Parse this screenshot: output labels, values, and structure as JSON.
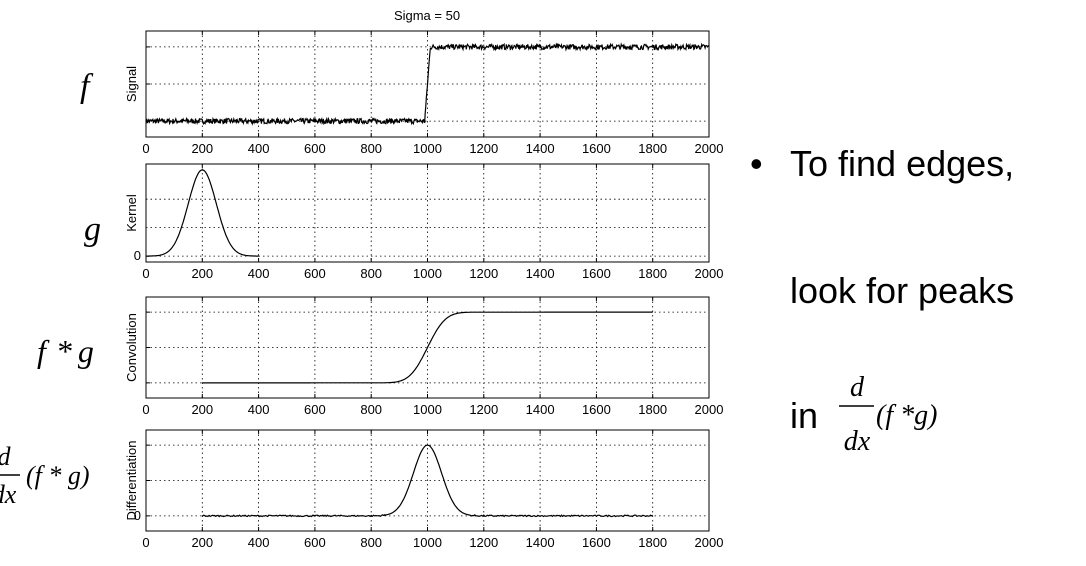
{
  "chart_data": {
    "type": "line",
    "title": "Sigma = 50",
    "xlim": [
      0,
      2000
    ],
    "x_ticks": [
      "0",
      "200",
      "400",
      "600",
      "800",
      "1000",
      "1200",
      "1400",
      "1600",
      "1800",
      "2000"
    ],
    "grid": true,
    "panels": [
      {
        "ylabel": "Signal",
        "row_label": "f",
        "y_ticks": [],
        "series": [
          {
            "x": [
              0,
              990,
              1010,
              2000
            ],
            "y": [
              0,
              0,
              1,
              1
            ],
            "noise": "high-frequency noise"
          }
        ]
      },
      {
        "ylabel": "Kernel",
        "row_label": "g",
        "y_ticks": [
          "0"
        ],
        "series": [
          {
            "shape": "gaussian",
            "center": 200,
            "sigma": 50,
            "x_range": [
              0,
              400
            ]
          }
        ]
      },
      {
        "ylabel": "Convolution",
        "row_label": "f * g",
        "y_ticks": [],
        "series": [
          {
            "shape": "smoothed step",
            "center": 1000,
            "sigma": 50,
            "x_range": [
              200,
              1800
            ]
          }
        ]
      },
      {
        "ylabel": "Differentiation",
        "row_label": "d/dx (f * g)",
        "y_ticks": [
          "0"
        ],
        "series": [
          {
            "shape": "gaussian",
            "center": 1000,
            "sigma": 50,
            "x_range": [
              200,
              1800
            ]
          }
        ]
      }
    ]
  },
  "labels": {
    "f": "f",
    "g": "g",
    "fg_f": "f",
    "fg_star": "*",
    "fg_g": "g",
    "deriv_d": "d",
    "deriv_dx": "dx",
    "deriv_expr": "(f * g)"
  },
  "bullets": {
    "dot": "•",
    "line1": "To find edges,",
    "line2": "look for peaks",
    "line3_prefix": "in",
    "line3_d": "d",
    "line3_dx": "dx",
    "line3_expr": "(f *g)"
  }
}
